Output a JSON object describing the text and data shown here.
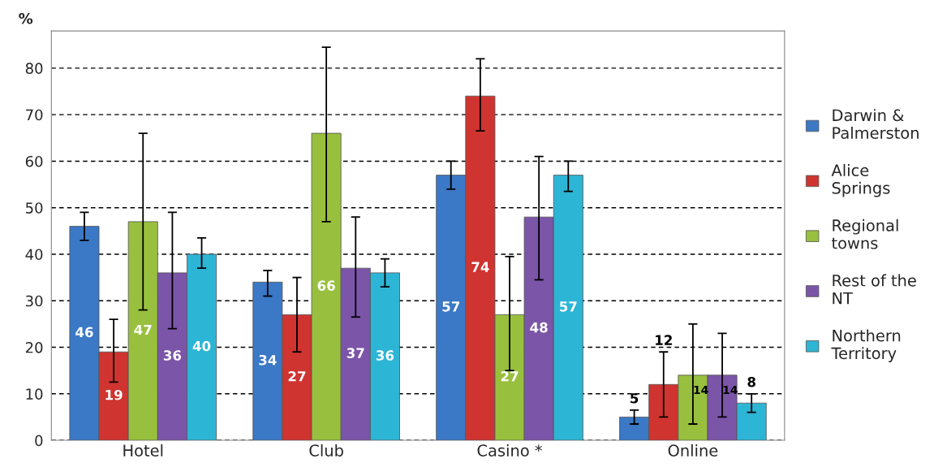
{
  "chart_data": {
    "type": "bar",
    "ylabel": "%",
    "categories": [
      "Hotel",
      "Club",
      "Casino *",
      "Online"
    ],
    "series": [
      {
        "name": "Darwin & Palmerston",
        "color": "#3b78c6",
        "values": [
          46,
          34,
          57,
          5
        ],
        "errors": [
          [
            43,
            49
          ],
          [
            31,
            36.5
          ],
          [
            54,
            60
          ],
          [
            3.5,
            6.5
          ]
        ]
      },
      {
        "name": "Alice Springs",
        "color": "#cf3430",
        "values": [
          19,
          27,
          74,
          12
        ],
        "errors": [
          [
            12.5,
            26
          ],
          [
            19,
            35
          ],
          [
            66.5,
            82
          ],
          [
            5,
            19
          ]
        ]
      },
      {
        "name": "Regional towns",
        "color": "#98c03e",
        "values": [
          47,
          66,
          27,
          14
        ],
        "errors": [
          [
            28,
            66
          ],
          [
            47,
            84.5
          ],
          [
            15,
            39.5
          ],
          [
            3.5,
            25
          ]
        ]
      },
      {
        "name": "Rest of the NT",
        "color": "#7b55a8",
        "values": [
          36,
          37,
          48,
          14
        ],
        "errors": [
          [
            24,
            49
          ],
          [
            26.5,
            48
          ],
          [
            34.5,
            61
          ],
          [
            5,
            23
          ]
        ]
      },
      {
        "name": "Northern Territory",
        "color": "#2db5d6",
        "values": [
          40,
          36,
          57,
          8
        ],
        "errors": [
          [
            37,
            43.5
          ],
          [
            33,
            39
          ],
          [
            53.5,
            60
          ],
          [
            6,
            10
          ]
        ]
      }
    ],
    "ylim": [
      0,
      88
    ],
    "yticks": [
      0,
      10,
      20,
      30,
      40,
      50,
      60,
      70,
      80
    ],
    "grid": "y",
    "line_style": "dashed",
    "legend": "right",
    "data_labels": true
  }
}
